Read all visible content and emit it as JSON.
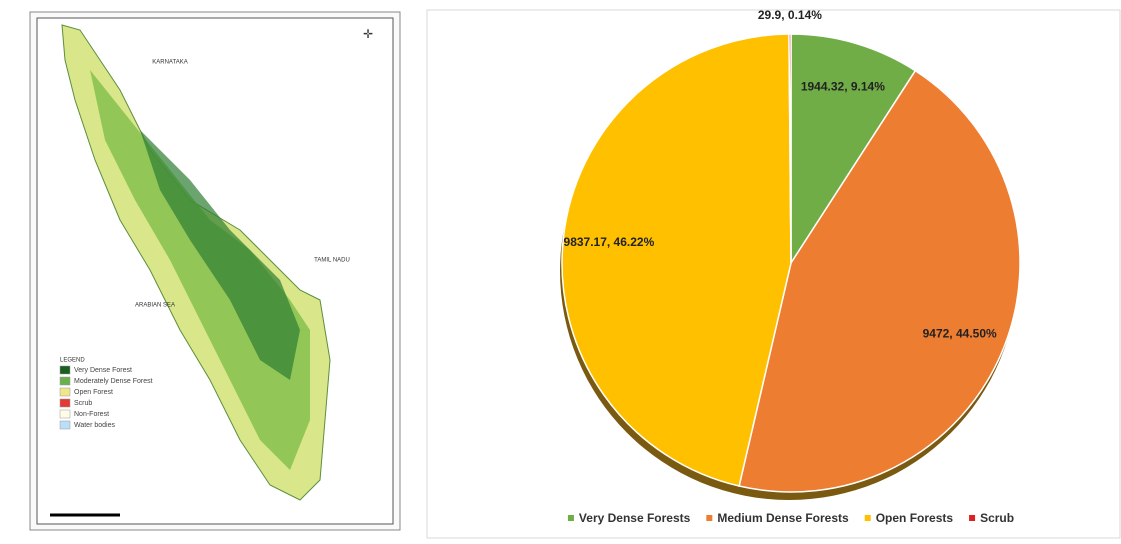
{
  "map": {
    "labels": [
      "KARNATAKA",
      "TAMIL NADU",
      "ARABIAN SEA"
    ],
    "legend_title": "LEGEND",
    "legend": [
      "Very Dense Forest",
      "Moderately Dense Forest",
      "Open Forest",
      "Scrub",
      "Non-Forest",
      "Water bodies"
    ]
  },
  "chart_data": {
    "type": "pie",
    "categories": [
      "Very Dense Forests",
      "Medium Dense Forests",
      "Open Forests",
      "Scrub"
    ],
    "values": [
      1944.32,
      9472,
      9837.17,
      29.9
    ],
    "value_labels": [
      "1944.32, 9.14%",
      "9472, 44.50%",
      "9837.17, 46.22%",
      "29.9, 0.14%"
    ],
    "colors": [
      "#70ad47",
      "#ed7d31",
      "#ffc000",
      "#e02020"
    ],
    "legend": "bottom"
  }
}
